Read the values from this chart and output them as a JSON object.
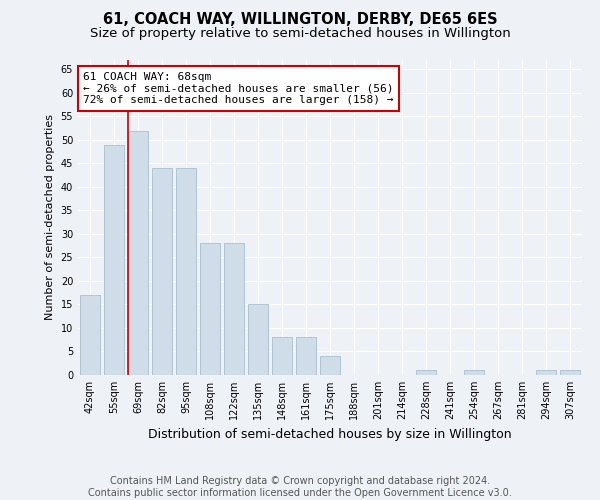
{
  "title": "61, COACH WAY, WILLINGTON, DERBY, DE65 6ES",
  "subtitle": "Size of property relative to semi-detached houses in Willington",
  "xlabel": "Distribution of semi-detached houses by size in Willington",
  "ylabel": "Number of semi-detached properties",
  "categories": [
    "42sqm",
    "55sqm",
    "69sqm",
    "82sqm",
    "95sqm",
    "108sqm",
    "122sqm",
    "135sqm",
    "148sqm",
    "161sqm",
    "175sqm",
    "188sqm",
    "201sqm",
    "214sqm",
    "228sqm",
    "241sqm",
    "254sqm",
    "267sqm",
    "281sqm",
    "294sqm",
    "307sqm"
  ],
  "values": [
    17,
    49,
    52,
    44,
    44,
    28,
    28,
    15,
    8,
    8,
    4,
    0,
    0,
    0,
    1,
    0,
    1,
    0,
    0,
    1,
    1
  ],
  "bar_color": "#cfdde8",
  "bar_edge_color": "#aabfd0",
  "highlight_line_color": "#cc0000",
  "annotation_text": "61 COACH WAY: 68sqm\n← 26% of semi-detached houses are smaller (56)\n72% of semi-detached houses are larger (158) →",
  "annotation_box_facecolor": "#ffffff",
  "annotation_box_edgecolor": "#cc0000",
  "ylim": [
    0,
    67
  ],
  "yticks": [
    0,
    5,
    10,
    15,
    20,
    25,
    30,
    35,
    40,
    45,
    50,
    55,
    60,
    65
  ],
  "footer_text": "Contains HM Land Registry data © Crown copyright and database right 2024.\nContains public sector information licensed under the Open Government Licence v3.0.",
  "bg_color": "#eef2f7",
  "plot_bg_color": "#eef2f7",
  "grid_color": "#ffffff",
  "title_fontsize": 10.5,
  "subtitle_fontsize": 9.5,
  "xlabel_fontsize": 9,
  "ylabel_fontsize": 8,
  "tick_fontsize": 7,
  "annotation_fontsize": 8,
  "footer_fontsize": 7
}
